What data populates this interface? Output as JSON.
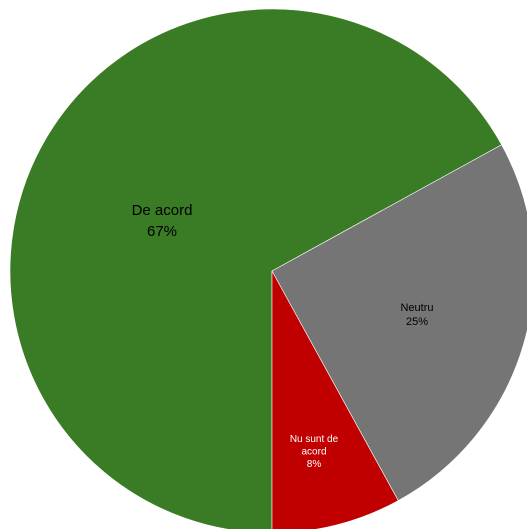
{
  "chart_data": {
    "type": "pie",
    "title": "",
    "slices": [
      {
        "label_lines": [
          "De acord"
        ],
        "percent_text": "67%",
        "value": 67,
        "color": "#3a7b25"
      },
      {
        "label_lines": [
          "Neutru"
        ],
        "percent_text": "25%",
        "value": 25,
        "color": "#757575"
      },
      {
        "label_lines": [
          "Nu sunt de",
          "acord"
        ],
        "percent_text": "8%",
        "value": 8,
        "color": "#c00000"
      }
    ],
    "start_angle_deg": 180,
    "direction": "clockwise",
    "legend": "none"
  }
}
